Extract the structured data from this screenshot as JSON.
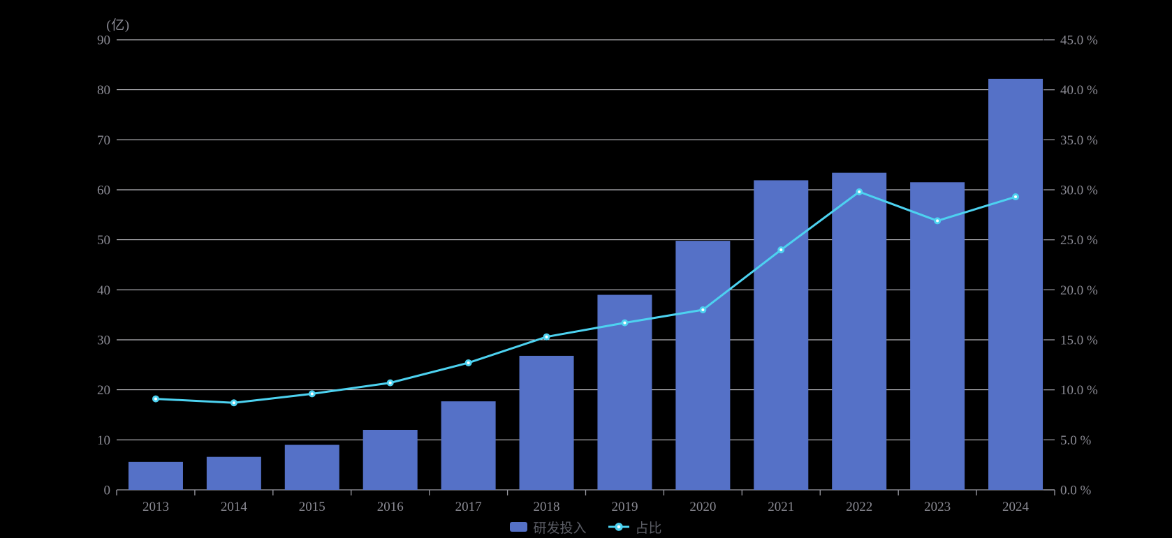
{
  "chart_data": {
    "type": "bar",
    "combo": "bar+line dual axis",
    "title": "",
    "categories": [
      "2013",
      "2014",
      "2015",
      "2016",
      "2017",
      "2018",
      "2019",
      "2020",
      "2021",
      "2022",
      "2023",
      "2024"
    ],
    "series": [
      {
        "name": "研发投入",
        "type": "bar",
        "axis": "left",
        "unit": "亿",
        "color": "#5571C7",
        "values": [
          5.6,
          6.6,
          9.0,
          12.0,
          17.7,
          26.8,
          39.0,
          49.8,
          61.9,
          63.4,
          61.5,
          82.2
        ]
      },
      {
        "name": "占比",
        "type": "line",
        "axis": "right",
        "unit": "%",
        "color": "#4DD2F0",
        "marker": "empty-circle",
        "values": [
          9.1,
          8.7,
          9.6,
          10.7,
          12.7,
          15.3,
          16.7,
          18.0,
          24.0,
          29.8,
          26.9,
          29.3
        ]
      }
    ],
    "left_axis": {
      "title": "(亿)",
      "min": 0,
      "max": 90,
      "step": 10,
      "tick_labels": [
        "0",
        "10",
        "20",
        "30",
        "40",
        "50",
        "60",
        "70",
        "80",
        "90"
      ]
    },
    "right_axis": {
      "min": 0,
      "max": 45,
      "step": 5,
      "tick_labels": [
        "0.0 %",
        "5.0 %",
        "10.0 %",
        "15.0 %",
        "20.0 %",
        "25.0 %",
        "30.0 %",
        "35.0 %",
        "40.0 %",
        "45.0 %"
      ]
    },
    "grid": "horizontal gridlines on",
    "legend_position": "bottom-center",
    "colors": {
      "background": "#000000",
      "grid_line": "#E2E2E8",
      "axis_line": "#9B9BA3",
      "axis_label": "#8A8A93",
      "legend_label": "#5C5E66",
      "marker_fill": "#FFFFFF"
    }
  },
  "legend": {
    "bar_label": "研发投入",
    "line_label": "占比"
  }
}
